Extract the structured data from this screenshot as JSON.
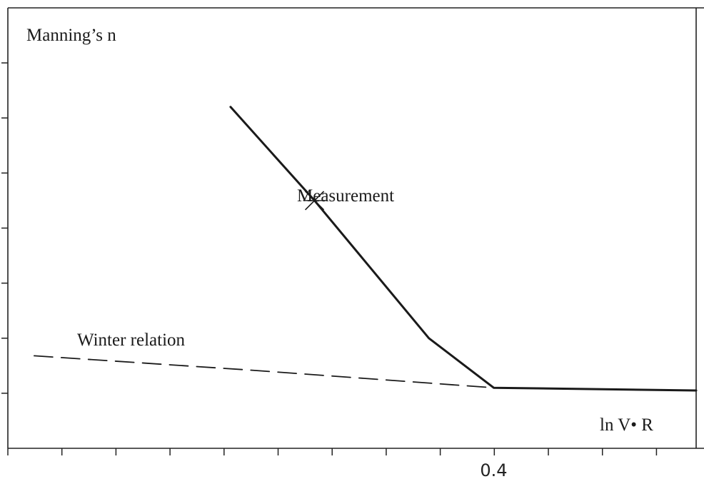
{
  "chart_data": {
    "type": "line",
    "y_axis_title": "Manning’s  n",
    "x_axis_title": "ln V• R",
    "x_tick_labels": [
      {
        "x": 0.4,
        "text": "0.4"
      }
    ],
    "annotations": {
      "measurement": "Measurement",
      "winter": "Winter relation"
    },
    "xlim": [
      -0.2,
      0.14
    ],
    "ylim": [
      0,
      8
    ],
    "x_minor_tick_step": 0.0267,
    "y_ticks": [
      1,
      2,
      3,
      4,
      5,
      6,
      7
    ],
    "series": [
      {
        "style": "solid",
        "points": [
          [
            -0.09,
            6.2
          ],
          [
            -0.0485,
            4.5
          ],
          [
            0.008,
            2.0
          ],
          [
            0.04,
            1.1
          ],
          [
            0.14,
            1.05
          ]
        ]
      },
      {
        "style": "dashed",
        "points": [
          [
            -0.187,
            1.68
          ],
          [
            -0.08,
            1.42
          ],
          [
            0.04,
            1.1
          ]
        ]
      }
    ],
    "measurement_point": {
      "x": -0.0485,
      "y": 4.5
    },
    "grid": false
  }
}
